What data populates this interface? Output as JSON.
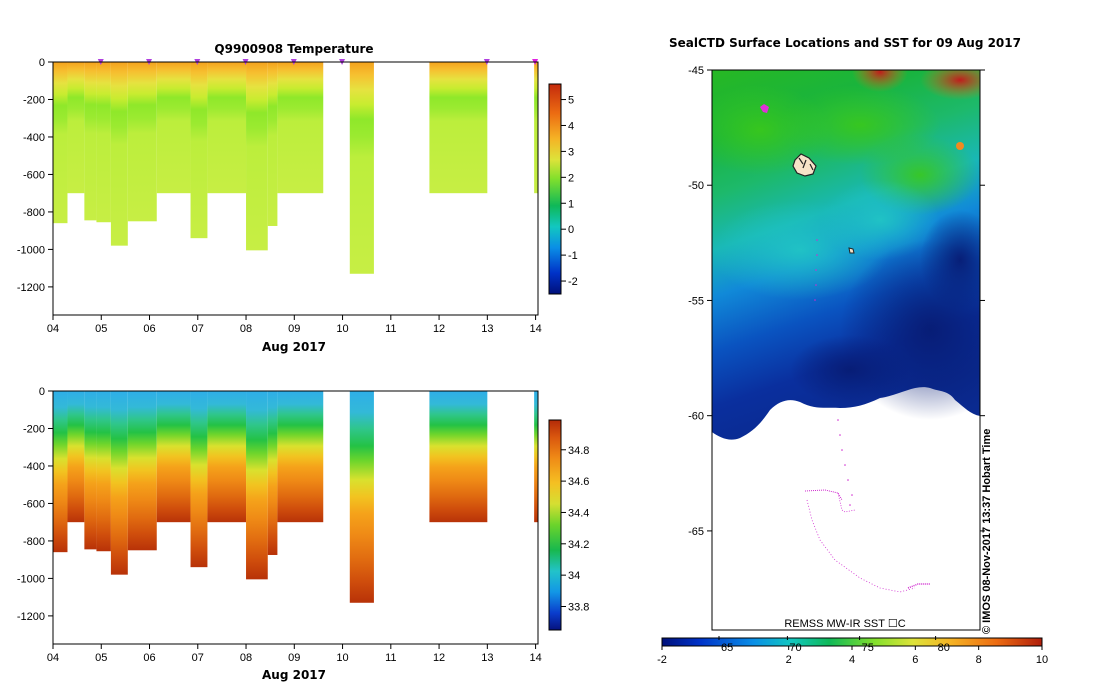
{
  "chart_data": [
    {
      "type": "heatmap",
      "title": "Q9900908  Temperature",
      "xlabel": "Aug 2017",
      "ylabel": "",
      "xlim": [
        4,
        14.05
      ],
      "ylim": [
        -1350,
        0
      ],
      "x_ticks": [
        "04",
        "05",
        "06",
        "07",
        "08",
        "09",
        "10",
        "11",
        "12",
        "13",
        "14"
      ],
      "y_ticks": [
        "0",
        "-200",
        "-400",
        "-600",
        "-800",
        "-1000",
        "-1200"
      ],
      "colorbar": {
        "min": -2.5,
        "max": 5.6,
        "ticks": [
          "-2",
          "-1",
          "0",
          "1",
          "2",
          "3",
          "4",
          "5"
        ]
      },
      "variable": "temperature",
      "profiles": [
        {
          "start": 4.0,
          "end": 4.3,
          "max_depth": 860
        },
        {
          "start": 4.3,
          "end": 4.65,
          "max_depth": 700
        },
        {
          "start": 4.65,
          "end": 4.9,
          "max_depth": 845
        },
        {
          "start": 4.9,
          "end": 5.2,
          "max_depth": 855
        },
        {
          "start": 5.2,
          "end": 5.55,
          "max_depth": 980
        },
        {
          "start": 5.55,
          "end": 6.15,
          "max_depth": 850
        },
        {
          "start": 6.15,
          "end": 6.85,
          "max_depth": 700
        },
        {
          "start": 6.85,
          "end": 7.2,
          "max_depth": 940
        },
        {
          "start": 7.2,
          "end": 8.0,
          "max_depth": 700
        },
        {
          "start": 8.0,
          "end": 8.45,
          "max_depth": 1005
        },
        {
          "start": 8.45,
          "end": 8.65,
          "max_depth": 875
        },
        {
          "start": 8.65,
          "end": 9.6,
          "max_depth": 700
        },
        {
          "start": 10.15,
          "end": 10.65,
          "max_depth": 1130
        },
        {
          "start": 11.8,
          "end": 13.0,
          "max_depth": 700
        },
        {
          "start": 13.97,
          "end": 14.05,
          "max_depth": 700
        }
      ],
      "surface_markers_x": [
        4.99,
        5.99,
        6.99,
        7.99,
        8.99,
        9.99,
        12.99,
        13.99
      ]
    },
    {
      "type": "heatmap",
      "title": "",
      "xlabel": "Aug 2017",
      "ylabel": "",
      "xlim": [
        4,
        14.05
      ],
      "ylim": [
        -1350,
        0
      ],
      "x_ticks": [
        "04",
        "05",
        "06",
        "07",
        "08",
        "09",
        "10",
        "11",
        "12",
        "13",
        "14"
      ],
      "y_ticks": [
        "0",
        "-200",
        "-400",
        "-600",
        "-800",
        "-1000",
        "-1200"
      ],
      "colorbar": {
        "min": 33.65,
        "max": 34.99,
        "ticks": [
          "33.8",
          "34",
          "34.2",
          "34.4",
          "34.6",
          "34.8"
        ]
      },
      "variable": "salinity",
      "profiles": [
        {
          "start": 4.0,
          "end": 4.3,
          "max_depth": 860
        },
        {
          "start": 4.3,
          "end": 4.65,
          "max_depth": 700
        },
        {
          "start": 4.65,
          "end": 4.9,
          "max_depth": 845
        },
        {
          "start": 4.9,
          "end": 5.2,
          "max_depth": 855
        },
        {
          "start": 5.2,
          "end": 5.55,
          "max_depth": 980
        },
        {
          "start": 5.55,
          "end": 6.15,
          "max_depth": 850
        },
        {
          "start": 6.15,
          "end": 6.85,
          "max_depth": 700
        },
        {
          "start": 6.85,
          "end": 7.2,
          "max_depth": 940
        },
        {
          "start": 7.2,
          "end": 8.0,
          "max_depth": 700
        },
        {
          "start": 8.0,
          "end": 8.45,
          "max_depth": 1005
        },
        {
          "start": 8.45,
          "end": 8.65,
          "max_depth": 875
        },
        {
          "start": 8.65,
          "end": 9.6,
          "max_depth": 700
        },
        {
          "start": 10.15,
          "end": 10.65,
          "max_depth": 1130
        },
        {
          "start": 11.8,
          "end": 13.0,
          "max_depth": 700
        },
        {
          "start": 13.97,
          "end": 14.05,
          "max_depth": 700
        }
      ]
    },
    {
      "type": "heatmap",
      "title": "SealCTD Surface Locations and SST for 09 Aug 2017",
      "xlabel": "",
      "ylabel": "",
      "ylim": [
        -69.3,
        -45
      ],
      "y_ticks": [
        "-45",
        "-50",
        "-55",
        "-60",
        "-65"
      ],
      "source_label": "REMSS MW-IR SST ☐C",
      "colorbar": {
        "min": -2,
        "max": 10,
        "ticks": [
          "-2",
          "2",
          "4",
          "6",
          "8",
          "10"
        ],
        "secondary_ticks": [
          "65",
          "70",
          "75",
          "80"
        ]
      },
      "side_text": "©  IMOS 08-Nov-2017 13:37 Hobart Time"
    }
  ]
}
